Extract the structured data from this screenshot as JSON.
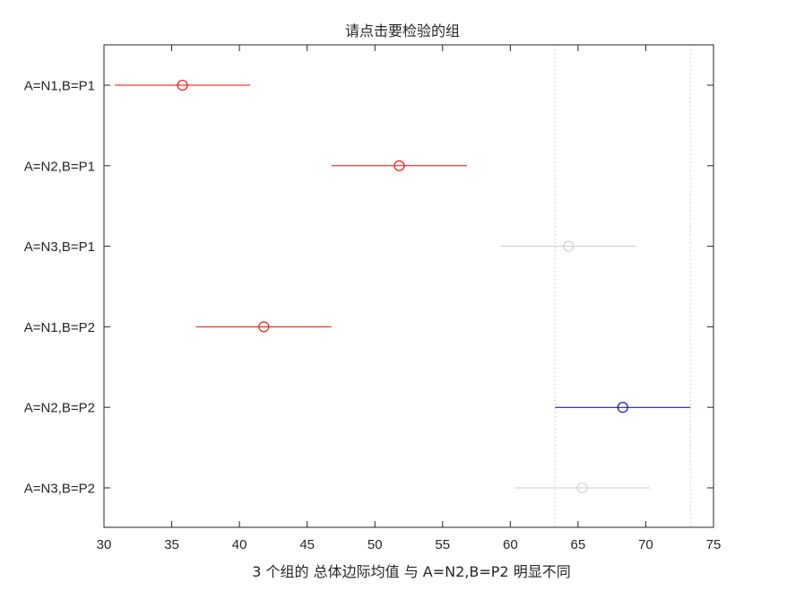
{
  "chart_data": {
    "type": "scatter",
    "title": "请点击要检验的组",
    "xlabel": "3 个组的 总体边际均值  与 A=N2,B=P2  明显不同",
    "ylabel": "",
    "xlim": [
      30,
      75
    ],
    "xticks": [
      30,
      35,
      40,
      45,
      50,
      55,
      60,
      65,
      70,
      75
    ],
    "groups": [
      "A=N1,B=P1",
      "A=N2,B=P1",
      "A=N3,B=P1",
      "A=N1,B=P2",
      "A=N2,B=P2",
      "A=N3,B=P2"
    ],
    "means": [
      35.8,
      51.8,
      64.3,
      41.8,
      68.3,
      65.3
    ],
    "lower": [
      30.8,
      46.8,
      59.3,
      36.8,
      63.3,
      60.3
    ],
    "upper": [
      40.8,
      56.8,
      69.3,
      46.8,
      73.3,
      70.3
    ],
    "status": [
      "different",
      "different",
      "not-different",
      "different",
      "selected",
      "not-different"
    ],
    "reference_lines": [
      63.3,
      73.3
    ],
    "grid": false,
    "colors": {
      "different": "#ff0000",
      "not-different": "#cccccc",
      "selected": "#0000aa",
      "reference": "#c8c8c8",
      "axis": "#262626"
    }
  }
}
